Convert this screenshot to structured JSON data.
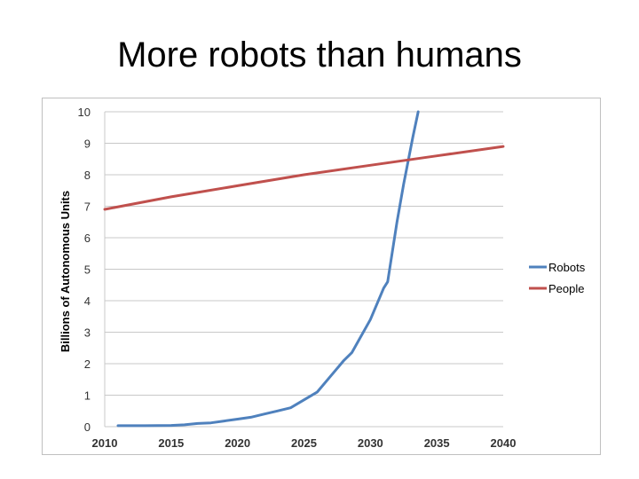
{
  "slide": {
    "title": "More robots than humans"
  },
  "chart_data": {
    "type": "line",
    "title": "",
    "xlabel": "",
    "ylabel": "Billions of Autonomous Units",
    "xlim": [
      2010,
      2040
    ],
    "ylim": [
      0,
      10
    ],
    "x_ticks": [
      2010,
      2015,
      2020,
      2025,
      2030,
      2035,
      2040
    ],
    "y_ticks": [
      0,
      1,
      2,
      3,
      4,
      5,
      6,
      7,
      8,
      9,
      10
    ],
    "grid": "horizontal",
    "legend_position": "right",
    "series": [
      {
        "name": "Robots",
        "color": "#4f81bd",
        "points": [
          [
            2011,
            0.03
          ],
          [
            2013,
            0.03
          ],
          [
            2015,
            0.04
          ],
          [
            2016,
            0.06
          ],
          [
            2017,
            0.1
          ],
          [
            2018,
            0.12
          ],
          [
            2019,
            0.18
          ],
          [
            2020,
            0.24
          ],
          [
            2021,
            0.3
          ],
          [
            2022,
            0.4
          ],
          [
            2023,
            0.5
          ],
          [
            2024,
            0.6
          ],
          [
            2025,
            0.85
          ],
          [
            2026,
            1.1
          ],
          [
            2027,
            1.6
          ],
          [
            2028,
            2.1
          ],
          [
            2028.6,
            2.35
          ],
          [
            2030,
            3.4
          ],
          [
            2031,
            4.4
          ],
          [
            2031.3,
            4.6
          ],
          [
            2032,
            6.5
          ],
          [
            2032.5,
            7.7
          ],
          [
            2033.2,
            9.2
          ],
          [
            2033.6,
            10.0
          ]
        ]
      },
      {
        "name": "People",
        "color": "#c0504d",
        "points": [
          [
            2010,
            6.9
          ],
          [
            2015,
            7.3
          ],
          [
            2020,
            7.65
          ],
          [
            2025,
            8.0
          ],
          [
            2030,
            8.3
          ],
          [
            2035,
            8.6
          ],
          [
            2040,
            8.9
          ]
        ]
      }
    ]
  }
}
